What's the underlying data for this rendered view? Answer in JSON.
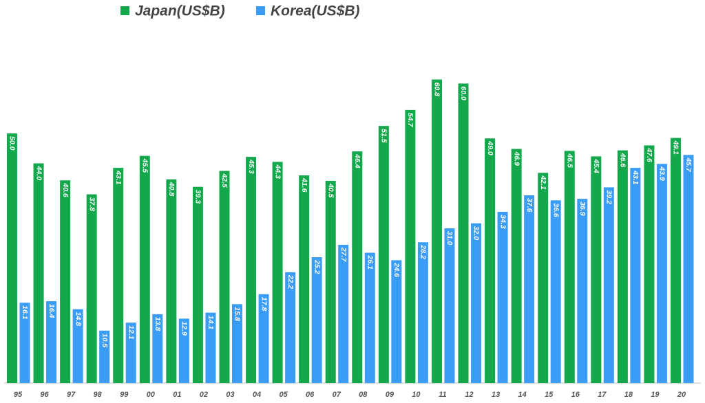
{
  "chart_data": {
    "type": "bar",
    "categories": [
      "95",
      "96",
      "97",
      "98",
      "99",
      "00",
      "01",
      "02",
      "03",
      "04",
      "05",
      "06",
      "07",
      "08",
      "09",
      "10",
      "11",
      "12",
      "13",
      "14",
      "15",
      "16",
      "17",
      "18",
      "19",
      "20"
    ],
    "series": [
      {
        "name": "Japan(US$B)",
        "color": "#13a84b",
        "values": [
          50.0,
          44.0,
          40.6,
          37.8,
          43.1,
          45.5,
          40.8,
          39.3,
          42.5,
          45.3,
          44.3,
          41.6,
          40.5,
          46.4,
          51.5,
          54.7,
          60.8,
          60.0,
          49.0,
          46.9,
          42.1,
          46.5,
          45.4,
          46.6,
          47.6,
          49.1
        ],
        "value_labels": [
          "50.0",
          "44.0",
          "40.6",
          "37.8",
          "43.1",
          "45.5",
          "40.8",
          "39.3",
          "42.5",
          "45.3",
          "44.3",
          "41.6",
          "40.5",
          "46.4",
          "51.5",
          "54.7",
          "60.8",
          "60.0",
          "49.0",
          "46.9",
          "42.1",
          "46.5",
          "45.4",
          "46.6",
          "47.6",
          "49.1"
        ]
      },
      {
        "name": "Korea(US$B)",
        "color": "#3b9cf5",
        "values": [
          16.1,
          16.4,
          14.8,
          10.5,
          12.1,
          13.8,
          12.9,
          14.1,
          15.8,
          17.8,
          22.2,
          25.2,
          27.7,
          26.1,
          24.6,
          28.2,
          31.0,
          32.0,
          34.3,
          37.6,
          36.6,
          36.9,
          39.2,
          43.1,
          43.9,
          45.7
        ],
        "value_labels": [
          "16.1",
          "16.4",
          "14.8",
          "10.5",
          "12.1",
          "13.8",
          "12.9",
          "14.1",
          "15.8",
          "17.8",
          "22.2",
          "25.2",
          "27.7",
          "26.1",
          "24.6",
          "28.2",
          "31.0",
          "32.0",
          "34.3",
          "37.6",
          "36.6",
          "36.9",
          "39.2",
          "43.1",
          "43.9",
          "45.7"
        ]
      }
    ]
  }
}
